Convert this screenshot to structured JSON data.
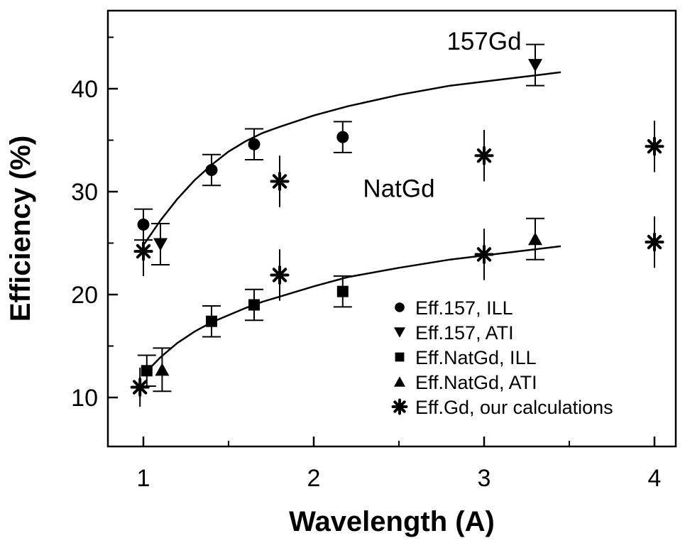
{
  "chart_data": {
    "type": "scatter",
    "xlabel": "Wavelength (A)",
    "ylabel": "Efficiency (%)",
    "xlim": [
      0.7,
      4.2
    ],
    "ylim": [
      5,
      48
    ],
    "x_ticks": [
      1,
      2,
      3,
      4
    ],
    "x_tick_labels": [
      "1",
      "2",
      "3",
      "4"
    ],
    "y_ticks": [
      10,
      20,
      30,
      40
    ],
    "y_tick_labels": [
      "10",
      "20",
      "30",
      "40"
    ],
    "grid": false,
    "legend_position": "bottom-right",
    "annotations": [
      {
        "text": "157Gd",
        "x": 3.0,
        "y": 43.8
      },
      {
        "text": "NatGd",
        "x": 2.5,
        "y": 29.5
      }
    ],
    "series": [
      {
        "name": "Eff.157, ILL",
        "marker": "circle",
        "points": [
          {
            "x": 1.0,
            "y": 26.8,
            "err": 1.5
          },
          {
            "x": 1.4,
            "y": 32.1,
            "err": 1.5
          },
          {
            "x": 1.65,
            "y": 34.6,
            "err": 1.5
          },
          {
            "x": 2.17,
            "y": 35.3,
            "err": 1.5
          }
        ]
      },
      {
        "name": "Eff.157, ATI",
        "marker": "triangle-down",
        "points": [
          {
            "x": 1.1,
            "y": 24.9,
            "err": 2.0
          },
          {
            "x": 3.3,
            "y": 42.3,
            "err": 2.0
          }
        ]
      },
      {
        "name": "Eff.NatGd, ILL",
        "marker": "square",
        "points": [
          {
            "x": 1.02,
            "y": 12.6,
            "err": 1.5
          },
          {
            "x": 1.4,
            "y": 17.4,
            "err": 1.5
          },
          {
            "x": 1.65,
            "y": 19.0,
            "err": 1.5
          },
          {
            "x": 2.17,
            "y": 20.3,
            "err": 1.5
          }
        ]
      },
      {
        "name": "Eff.NatGd, ATI",
        "marker": "triangle-up",
        "points": [
          {
            "x": 1.11,
            "y": 12.7,
            "err": 2.1
          },
          {
            "x": 3.3,
            "y": 25.4,
            "err": 2.0
          }
        ]
      },
      {
        "name": "Eff.Gd, our calculations",
        "marker": "asterisk",
        "points": [
          {
            "x": 1.0,
            "y": 24.2,
            "err": 2.4
          },
          {
            "x": 1.8,
            "y": 31.0,
            "err": 2.5
          },
          {
            "x": 3.0,
            "y": 33.5,
            "err": 2.5
          },
          {
            "x": 4.0,
            "y": 34.4,
            "err": 2.5
          },
          {
            "x": 0.98,
            "y": 11.0,
            "err": 1.9
          },
          {
            "x": 1.8,
            "y": 21.9,
            "err": 2.5
          },
          {
            "x": 3.0,
            "y": 23.9,
            "err": 2.5
          },
          {
            "x": 4.0,
            "y": 25.1,
            "err": 2.5
          }
        ]
      }
    ],
    "fit_curves": [
      {
        "label": "157Gd fit",
        "x": [
          1.0,
          1.1,
          1.2,
          1.3,
          1.4,
          1.5,
          1.6,
          1.7,
          1.8,
          2.0,
          2.2,
          2.5,
          2.8,
          3.1,
          3.45
        ],
        "y": [
          24.8,
          27.2,
          29.3,
          31.1,
          32.6,
          33.9,
          34.9,
          35.7,
          36.3,
          37.4,
          38.3,
          39.4,
          40.3,
          40.9,
          41.6
        ]
      },
      {
        "label": "NatGd fit",
        "x": [
          1.0,
          1.1,
          1.2,
          1.3,
          1.4,
          1.5,
          1.6,
          1.7,
          1.8,
          2.0,
          2.2,
          2.5,
          2.8,
          3.1,
          3.45
        ],
        "y": [
          12.2,
          13.9,
          15.3,
          16.4,
          17.3,
          18.0,
          18.7,
          19.3,
          19.8,
          20.8,
          21.7,
          22.6,
          23.4,
          24.0,
          24.7
        ]
      }
    ]
  }
}
